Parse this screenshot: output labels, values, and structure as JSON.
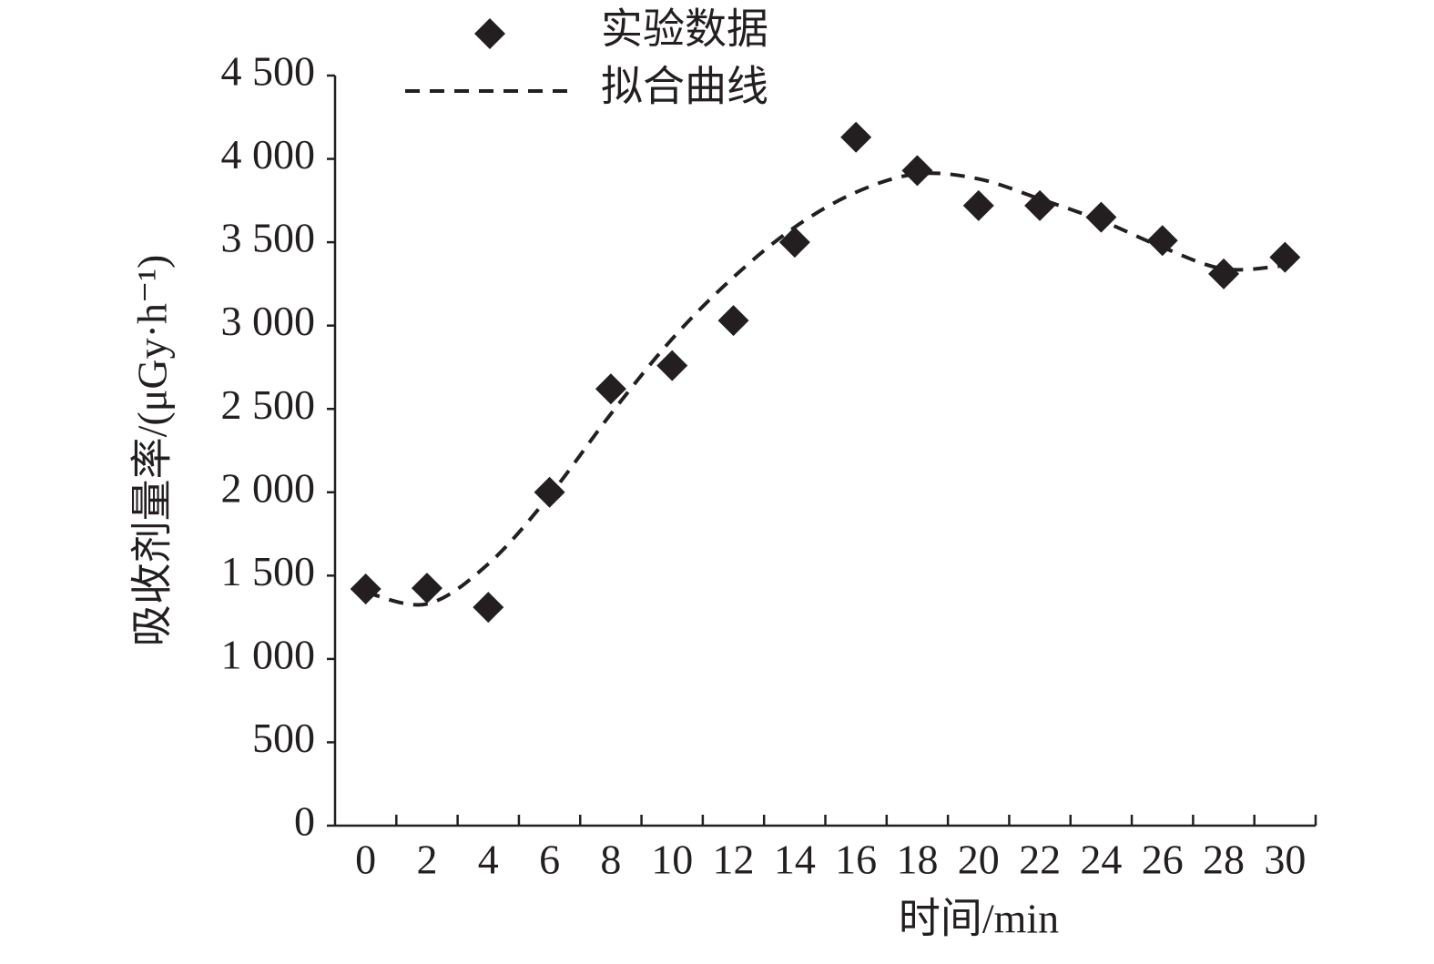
{
  "chart_data": {
    "type": "combo",
    "y_label": "吸收剂量率/(μGy·h⁻¹)",
    "x_label": "时间/min",
    "categories": [
      "0",
      "2",
      "4",
      "6",
      "8",
      "10",
      "12",
      "14",
      "16",
      "18",
      "20",
      "22",
      "24",
      "26",
      "28",
      "30"
    ],
    "series": [
      {
        "name": "实验数据",
        "type": "scatter",
        "color": "#231f20",
        "values": [
          1420,
          1425,
          1310,
          2000,
          2620,
          2760,
          3030,
          3500,
          4130,
          3930,
          3720,
          3720,
          3650,
          3510,
          3310,
          3410
        ]
      },
      {
        "name": "拟合曲线",
        "type": "line",
        "color": "#231f20",
        "values": [
          1400,
          1330,
          1570,
          1980,
          2470,
          2920,
          3290,
          3590,
          3800,
          3910,
          3880,
          3760,
          3630,
          3470,
          3340,
          3360
        ]
      }
    ],
    "ylim": [
      0,
      4500
    ],
    "yticks": [
      0,
      500,
      {
        "value": 1000,
        "label": "1 000"
      },
      {
        "value": 1500,
        "label": "1 500"
      },
      {
        "value": 2000,
        "label": "2 000"
      },
      {
        "value": 2500,
        "label": "2 500"
      },
      {
        "value": 3000,
        "label": "3 000"
      },
      {
        "value": 3500,
        "label": "3 500"
      },
      {
        "value": 4000,
        "label": "4 000"
      },
      {
        "value": 4500,
        "label": "4 500"
      }
    ]
  }
}
